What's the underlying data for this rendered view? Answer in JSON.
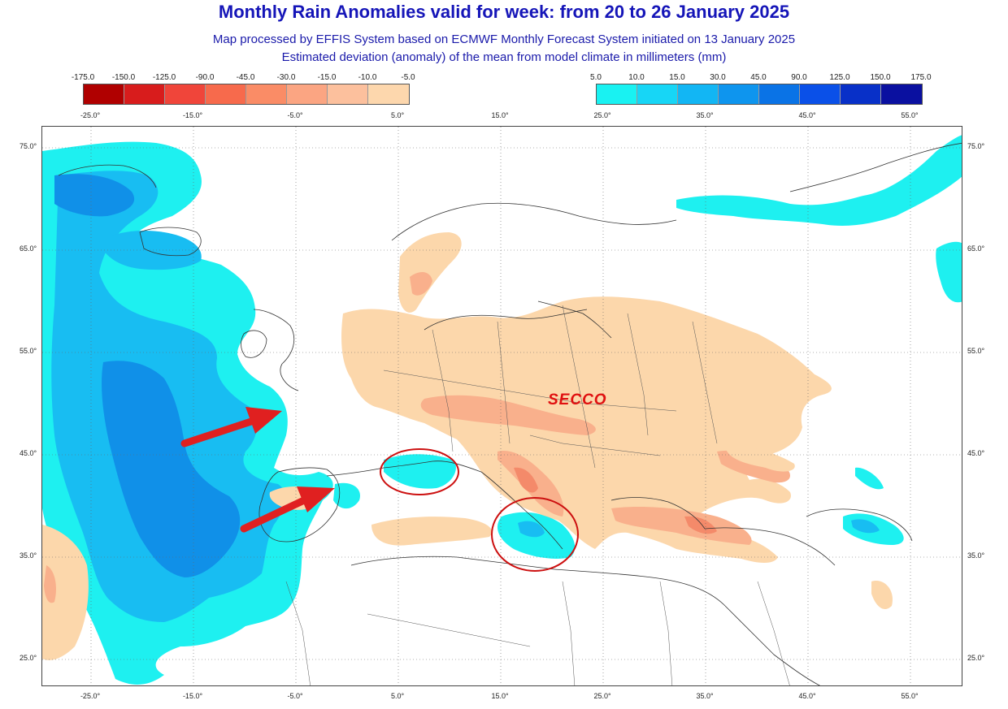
{
  "header": {
    "title": "Monthly Rain Anomalies valid for week: from 20 to 26 January 2025",
    "subtitle1": "Map processed by EFFIS System based on ECMWF Monthly Forecast System initiated on 13 January 2025",
    "subtitle2": "Estimated deviation (anomaly) of the mean from model climate in millimeters (mm)"
  },
  "legend_negative": {
    "labels": [
      "-175.0",
      "-150.0",
      "-125.0",
      "-90.0",
      "-45.0",
      "-30.0",
      "-15.0",
      "-10.0",
      "-5.0"
    ],
    "colors": [
      "#b00000",
      "#d81c1c",
      "#f0453a",
      "#f76a4c",
      "#fa8c66",
      "#fba582",
      "#fcc09d",
      "#fdd7ad"
    ]
  },
  "legend_positive": {
    "labels": [
      "5.0",
      "10.0",
      "15.0",
      "30.0",
      "45.0",
      "90.0",
      "125.0",
      "150.0",
      "175.0"
    ],
    "colors": [
      "#19f2f2",
      "#17d6f6",
      "#12b6f4",
      "#0e95ee",
      "#0a73e6",
      "#0a50e8",
      "#0830c8",
      "#0a10a0"
    ]
  },
  "axes": {
    "lon_top": [
      "-25.0°",
      "-15.0°",
      "-5.0°",
      "5.0°",
      "15.0°",
      "25.0°",
      "35.0°",
      "45.0°",
      "55.0°"
    ],
    "lon_bottom": [
      "-25.0°",
      "-15.0°",
      "-5.0°",
      "5.0°",
      "15.0°",
      "25.0°",
      "35.0°",
      "45.0°",
      "55.0°"
    ],
    "lat_left": [
      "75.0°",
      "65.0°",
      "55.0°",
      "45.0°",
      "35.0°",
      "25.0°"
    ],
    "lat_right": [
      "75.0°",
      "65.0°",
      "55.0°",
      "45.0°",
      "35.0°",
      "25.0°"
    ]
  },
  "annotation": {
    "label": "SECCO",
    "color": "#e01010"
  },
  "colors": {
    "dry": "#fcd7ab",
    "dry_mid": "#f9b08c",
    "dry_strong": "#f48a6a",
    "wet_light": "#1ef0f0",
    "wet_mid": "#18bdf2",
    "wet_strong": "#1090e8",
    "coast": "#333333"
  }
}
